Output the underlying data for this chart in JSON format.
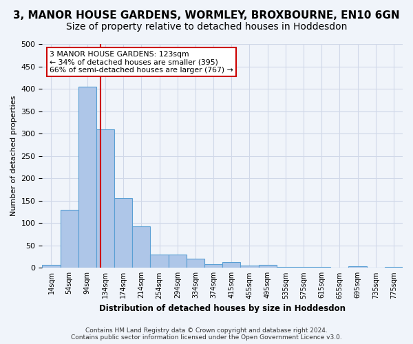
{
  "title": "3, MANOR HOUSE GARDENS, WORMLEY, BROXBOURNE, EN10 6GN",
  "subtitle": "Size of property relative to detached houses in Hoddesdon",
  "xlabel": "Distribution of detached houses by size in Hoddesdon",
  "ylabel": "Number of detached properties",
  "bar_values": [
    6,
    130,
    405,
    310,
    155,
    92,
    30,
    30,
    20,
    8,
    12,
    5,
    6,
    2,
    2,
    2,
    0,
    3,
    0,
    2
  ],
  "bar_labels": [
    "14sqm",
    "54sqm",
    "94sqm",
    "134sqm",
    "174sqm",
    "214sqm",
    "254sqm",
    "294sqm",
    "334sqm",
    "374sqm",
    "415sqm",
    "455sqm",
    "495sqm",
    "535sqm",
    "575sqm",
    "615sqm",
    "655sqm",
    "695sqm",
    "735sqm",
    "775sqm"
  ],
  "bar_color": "#aec6e8",
  "bar_edge_color": "#5a9fd4",
  "annotation_text_line1": "3 MANOR HOUSE GARDENS: 123sqm",
  "annotation_text_line2": "← 34% of detached houses are smaller (395)",
  "annotation_text_line3": "66% of semi-detached houses are larger (767) →",
  "annotation_box_color": "#ffffff",
  "annotation_box_edge": "#cc0000",
  "vline_color": "#cc0000",
  "ylim": [
    0,
    500
  ],
  "yticks": [
    0,
    50,
    100,
    150,
    200,
    250,
    300,
    350,
    400,
    450,
    500
  ],
  "grid_color": "#d0d8e8",
  "footer_line1": "Contains HM Land Registry data © Crown copyright and database right 2024.",
  "footer_line2": "Contains public sector information licensed under the Open Government Licence v3.0.",
  "bg_color": "#f0f4fa",
  "title_fontsize": 11,
  "subtitle_fontsize": 10
}
